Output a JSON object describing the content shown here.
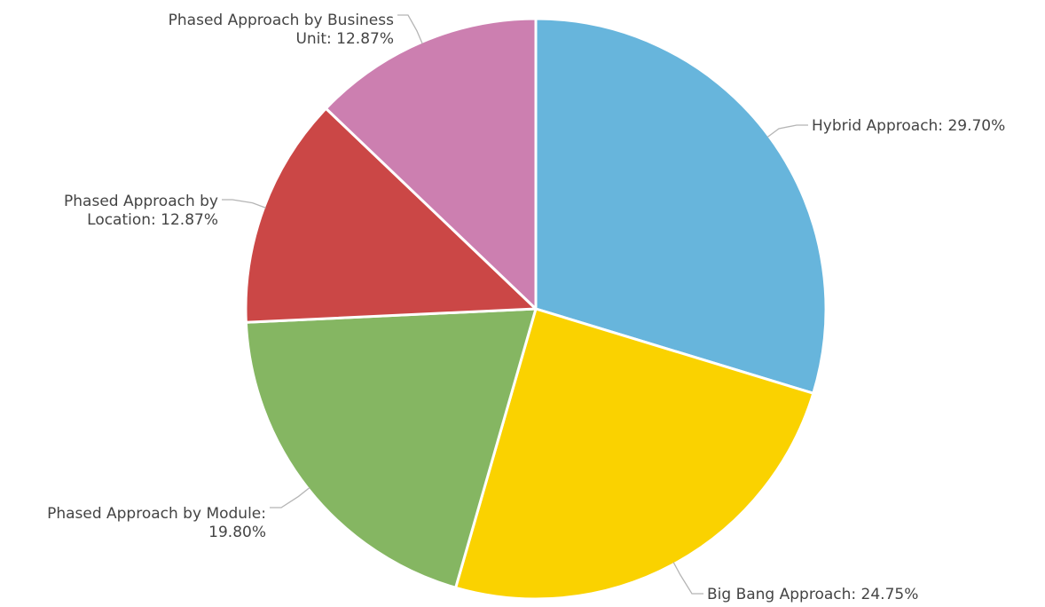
{
  "chart_data": {
    "type": "pie",
    "title": "",
    "start_angle_deg": 0,
    "direction": "clockwise",
    "slices": [
      {
        "label_lines": [
          "Hybrid Approach: 29.70%"
        ],
        "category": "Hybrid Approach",
        "value": 29.7,
        "color": "#67b5dc"
      },
      {
        "label_lines": [
          "Big Bang Approach: 24.75%"
        ],
        "category": "Big Bang Approach",
        "value": 24.75,
        "color": "#fad200"
      },
      {
        "label_lines": [
          "Phased Approach by Module:",
          "19.80%"
        ],
        "category": "Phased Approach by Module",
        "value": 19.8,
        "color": "#85b662"
      },
      {
        "label_lines": [
          "Phased Approach by",
          "Location: 12.87%"
        ],
        "category": "Phased Approach by Location",
        "value": 12.87,
        "color": "#cb4746"
      },
      {
        "label_lines": [
          "Phased Approach by Business",
          "Unit: 12.87%"
        ],
        "category": "Phased Approach by Business Unit",
        "value": 12.87,
        "color": "#cc7fb0"
      }
    ]
  }
}
